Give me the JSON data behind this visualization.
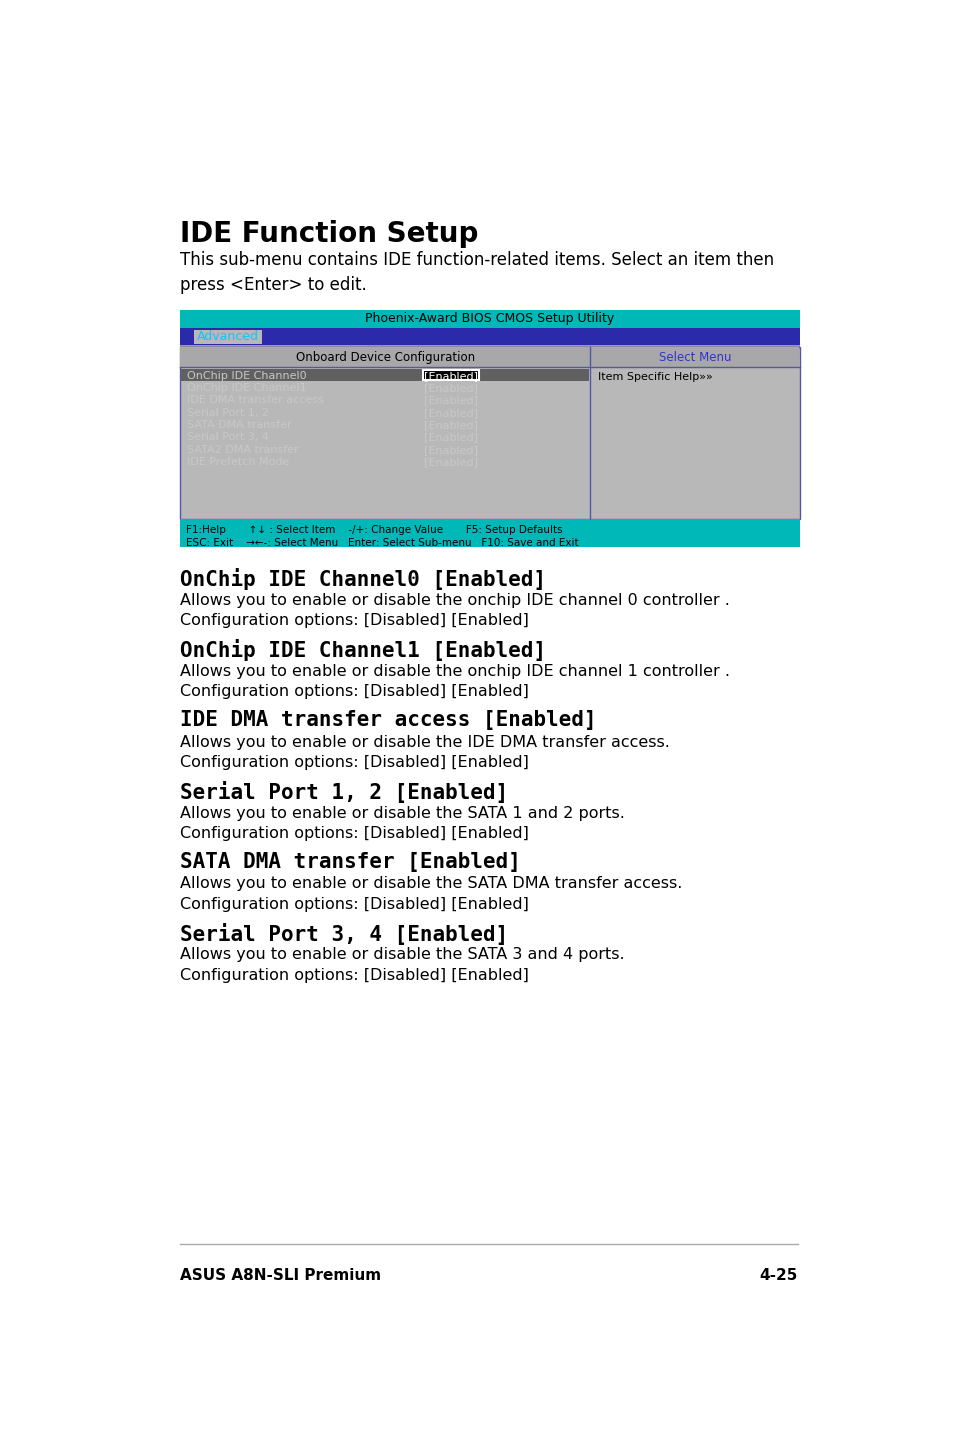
{
  "page_bg": "#ffffff",
  "title": "IDE Function Setup",
  "intro_text": "This sub-menu contains IDE function-related items. Select an item then\npress <Enter> to edit.",
  "bios_title": "Phoenix-Award BIOS CMOS Setup Utility",
  "bios_title_bg": "#00b8b8",
  "menu_tab": "Advanced",
  "menu_tab_bg": "#2a2aaa",
  "menu_tab_text": "#00ccff",
  "left_panel_title": "Onboard Device Configuration",
  "right_panel_title": "Select Menu",
  "panel_bg": "#b8b8b8",
  "panel_border": "#5555aa",
  "bios_rows": [
    [
      "OnChip IDE Channel0",
      "[Enabled]",
      true
    ],
    [
      "OnChip IDE Channel1",
      "[Enabled]",
      false
    ],
    [
      "IDE DMA transfer access",
      "[Enabled]",
      false
    ],
    [
      "Serial Port 1, 2",
      "[Enabled]",
      false
    ],
    [
      "SATA DMA transfer",
      "[Enabled]",
      false
    ],
    [
      "Serial Port 3, 4",
      "[Enabled]",
      false
    ],
    [
      "SATA2 DMA transfer",
      "[Enabled]",
      false
    ],
    [
      "IDE Prefetch Mode",
      "[Enabled]",
      false
    ]
  ],
  "help_text": "Item Specific Help»»",
  "footer_bg": "#00b8b8",
  "footer_lines": [
    "F1:Help       ↑↓ : Select Item    -/+: Change Value       F5: Setup Defaults",
    "ESC: Exit    →←-: Select Menu   Enter: Select Sub-menu   F10: Save and Exit"
  ],
  "sections": [
    {
      "heading": "OnChip IDE Channel0 [Enabled]",
      "body": "Allows you to enable or disable the onchip IDE channel 0 controller .\nConfiguration options: [Disabled] [Enabled]"
    },
    {
      "heading": "OnChip IDE Channel1 [Enabled]",
      "body": "Allows you to enable or disable the onchip IDE channel 1 controller .\nConfiguration options: [Disabled] [Enabled]"
    },
    {
      "heading": "IDE DMA transfer access [Enabled]",
      "body": "Allows you to enable or disable the IDE DMA transfer access.\nConfiguration options: [Disabled] [Enabled]"
    },
    {
      "heading": "Serial Port 1, 2 [Enabled]",
      "body": "Allows you to enable or disable the SATA 1 and 2 ports.\nConfiguration options: [Disabled] [Enabled]"
    },
    {
      "heading": "SATA DMA transfer [Enabled]",
      "body": "Allows you to enable or disable the SATA DMA transfer access.\nConfiguration options: [Disabled] [Enabled]"
    },
    {
      "heading": "Serial Port 3, 4 [Enabled]",
      "body": "Allows you to enable or disable the SATA 3 and 4 ports.\nConfiguration options: [Disabled] [Enabled]"
    }
  ],
  "footer_left": "ASUS A8N-SLI Premium",
  "footer_right": "4-25"
}
